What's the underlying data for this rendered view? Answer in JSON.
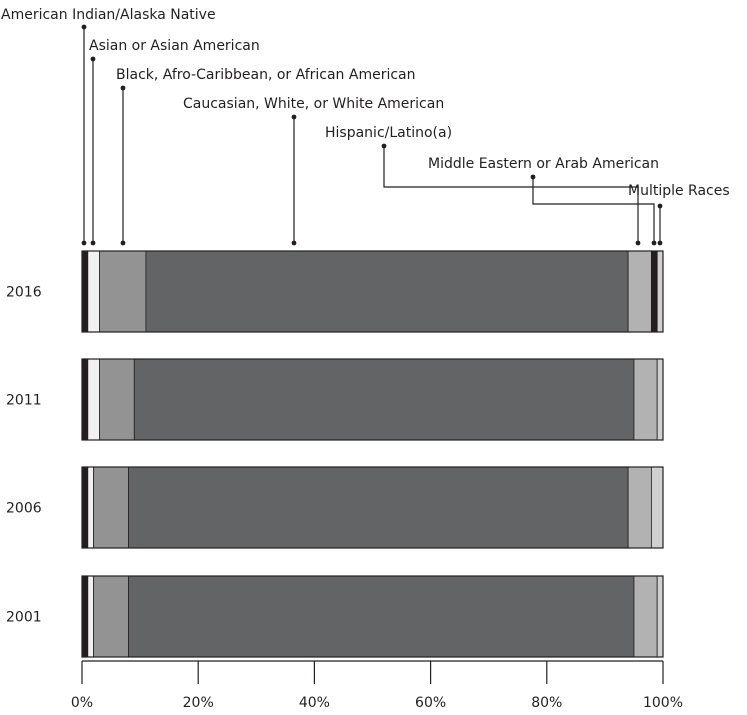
{
  "chart_data": {
    "type": "bar",
    "orientation": "horizontal",
    "stacked": true,
    "normalized": true,
    "categories": [
      "2016",
      "2011",
      "2006",
      "2001"
    ],
    "series": [
      {
        "name": "American Indian/Alaska Native",
        "color": "#231f20",
        "values": [
          1.0,
          1.0,
          1.0,
          1.0
        ]
      },
      {
        "name": "Asian or Asian American",
        "color": "#f1f1f1",
        "values": [
          2.0,
          2.0,
          1.0,
          1.0
        ]
      },
      {
        "name": "Black, Afro-Caribbean, or African American",
        "color": "#939393",
        "values": [
          8.0,
          6.0,
          6.0,
          6.0
        ]
      },
      {
        "name": "Caucasian, White, or White American",
        "color": "#636466",
        "values": [
          83.0,
          86.0,
          86.0,
          87.0
        ]
      },
      {
        "name": "Hispanic/Latino(a)",
        "color": "#b2b2b2",
        "values": [
          4.0,
          4.0,
          4.0,
          4.0
        ]
      },
      {
        "name": "Middle Eastern or Arab American",
        "color": "#231f20",
        "values": [
          1.0,
          0.0,
          0.0,
          0.0
        ]
      },
      {
        "name": "Multiple Races",
        "color": "#d0d0d0",
        "values": [
          1.0,
          1.0,
          2.0,
          1.0
        ]
      }
    ],
    "x_ticks": [
      "0%",
      "20%",
      "40%",
      "60%",
      "80%",
      "100%"
    ],
    "xlim": [
      0,
      100
    ],
    "legend": "callout-labels-top",
    "grid": false
  }
}
